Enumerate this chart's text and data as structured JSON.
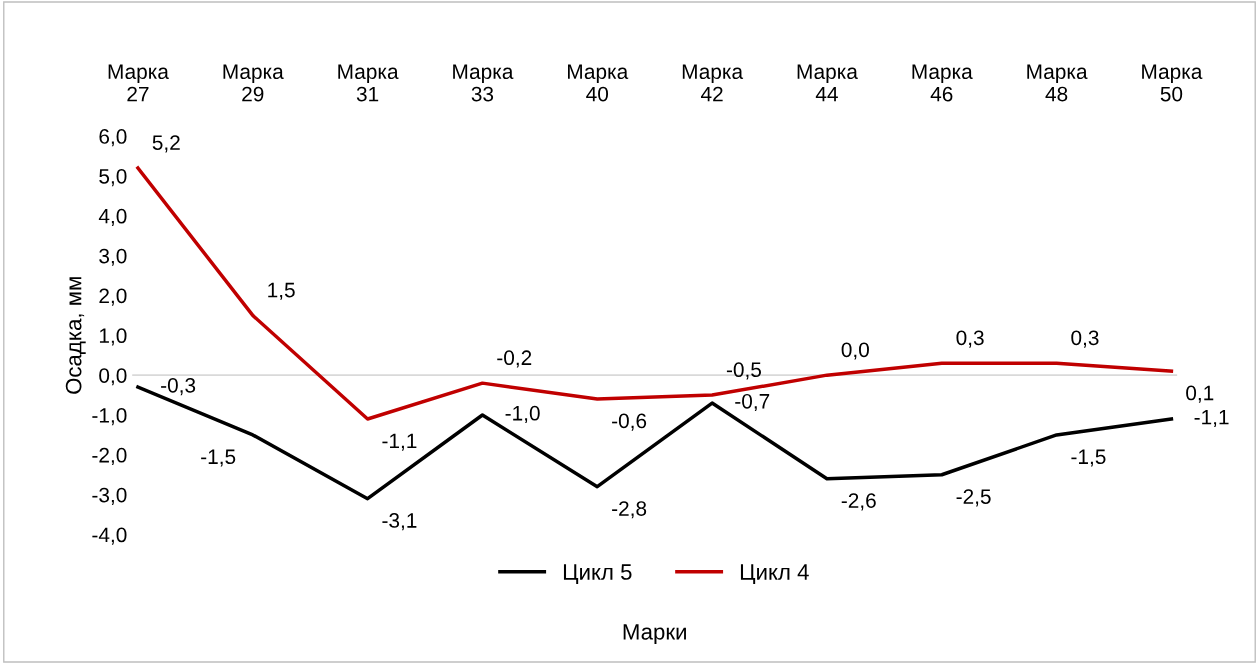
{
  "chart_data": {
    "type": "line",
    "xlabel": "Марки",
    "ylabel": "Осадка, мм",
    "categories": [
      "Марка\n27",
      "Марка\n29",
      "Марка\n31",
      "Марка\n33",
      "Марка\n40",
      "Марка\n42",
      "Марка\n44",
      "Марка\n46",
      "Марка\n48",
      "Марка\n50"
    ],
    "series": [
      {
        "name": "Цикл 5",
        "color": "#000000",
        "values": [
          -0.3,
          -1.5,
          -3.1,
          -1.0,
          -2.8,
          -0.7,
          -2.6,
          -2.5,
          -1.5,
          -1.1
        ],
        "value_labels": [
          "-0,3",
          "-1,5",
          "-3,1",
          "-1,0",
          "-2,8",
          "-0,7",
          "-2,6",
          "-2,5",
          "-1,5",
          "-1,1"
        ]
      },
      {
        "name": "Цикл 4",
        "color": "#c00000",
        "values": [
          5.2,
          1.5,
          -1.1,
          -0.2,
          -0.6,
          -0.5,
          0.0,
          0.3,
          0.3,
          0.1
        ],
        "value_labels": [
          "5,2",
          "1,5",
          "-1,1",
          "-0,2",
          "-0,6",
          "-0,5",
          "0,0",
          "0,3",
          "0,3",
          "0,1"
        ]
      }
    ],
    "ylim": [
      -4,
      6
    ],
    "yticks": [
      {
        "value": -4,
        "label": "-4,0"
      },
      {
        "value": -3,
        "label": "-3,0"
      },
      {
        "value": -2,
        "label": "-2,0"
      },
      {
        "value": -1,
        "label": "-1,0"
      },
      {
        "value": 0,
        "label": "0,0"
      },
      {
        "value": 1,
        "label": "1,0"
      },
      {
        "value": 2,
        "label": "2,0"
      },
      {
        "value": 3,
        "label": "3,0"
      },
      {
        "value": 4,
        "label": "4,0"
      },
      {
        "value": 5,
        "label": "5,0"
      },
      {
        "value": 6,
        "label": "6,0"
      }
    ],
    "ref_lines": [
      {
        "axis": "y",
        "value": 0,
        "color": "#d9d9d9"
      }
    ],
    "grid": false,
    "legend": "bottom",
    "marker": "none",
    "line_style": "solid"
  }
}
